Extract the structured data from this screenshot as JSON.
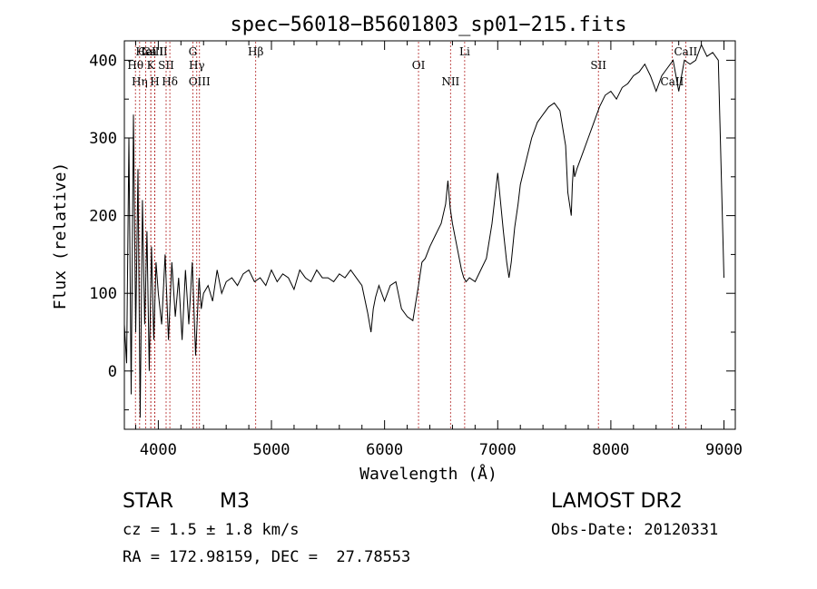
{
  "chart_data": {
    "type": "line",
    "title": "spec−56018−B5601803_sp01−215.fits",
    "xlabel": "Wavelength (Å)",
    "ylabel": "Flux (relative)",
    "xlim": [
      3700,
      9100
    ],
    "ylim": [
      -75,
      425
    ],
    "xticks": [
      4000,
      5000,
      6000,
      7000,
      8000,
      9000
    ],
    "yticks": [
      0,
      100,
      200,
      300,
      400
    ],
    "grid": false,
    "series": [
      {
        "x": [
          3700,
          3720,
          3740,
          3760,
          3780,
          3800,
          3820,
          3840,
          3860,
          3880,
          3900,
          3920,
          3940,
          3960,
          3980,
          4000,
          4030,
          4060,
          4090,
          4120,
          4150,
          4180,
          4210,
          4240,
          4270,
          4300,
          4330,
          4360,
          4380,
          4400,
          4440,
          4480,
          4520,
          4560,
          4600,
          4650,
          4700,
          4750,
          4800,
          4850,
          4900,
          4950,
          5000,
          5050,
          5100,
          5150,
          5200,
          5250,
          5300,
          5350,
          5400,
          5450,
          5500,
          5550,
          5600,
          5650,
          5700,
          5750,
          5800,
          5850,
          5880,
          5900,
          5920,
          5950,
          6000,
          6050,
          6100,
          6150,
          6200,
          6250,
          6300,
          6330,
          6360,
          6400,
          6450,
          6500,
          6540,
          6560,
          6580,
          6600,
          6640,
          6680,
          6700,
          6720,
          6750,
          6800,
          6850,
          6900,
          6950,
          7000,
          7050,
          7080,
          7100,
          7120,
          7150,
          7180,
          7200,
          7250,
          7300,
          7350,
          7400,
          7450,
          7500,
          7550,
          7600,
          7620,
          7650,
          7660,
          7670,
          7680,
          7700,
          7750,
          7800,
          7850,
          7900,
          7950,
          8000,
          8050,
          8100,
          8150,
          8200,
          8250,
          8300,
          8350,
          8400,
          8450,
          8500,
          8550,
          8600,
          8650,
          8700,
          8750,
          8800,
          8850,
          8900,
          8950,
          9000
        ],
        "y": [
          60,
          10,
          300,
          -30,
          330,
          50,
          260,
          -60,
          220,
          60,
          180,
          0,
          160,
          40,
          140,
          100,
          60,
          150,
          40,
          140,
          70,
          120,
          40,
          130,
          60,
          140,
          20,
          120,
          80,
          100,
          110,
          90,
          130,
          100,
          115,
          120,
          110,
          125,
          130,
          115,
          120,
          110,
          130,
          115,
          125,
          120,
          105,
          130,
          120,
          115,
          130,
          120,
          120,
          115,
          125,
          120,
          130,
          120,
          110,
          75,
          50,
          80,
          95,
          110,
          90,
          110,
          115,
          80,
          70,
          65,
          110,
          140,
          145,
          160,
          175,
          190,
          215,
          245,
          210,
          190,
          160,
          130,
          120,
          115,
          120,
          115,
          130,
          145,
          190,
          255,
          180,
          140,
          120,
          140,
          185,
          215,
          240,
          270,
          300,
          320,
          330,
          340,
          345,
          335,
          290,
          230,
          200,
          240,
          265,
          250,
          260,
          280,
          300,
          320,
          340,
          355,
          360,
          350,
          365,
          370,
          380,
          385,
          395,
          380,
          360,
          380,
          390,
          400,
          360,
          400,
          395,
          400,
          420,
          405,
          410,
          400,
          120
        ]
      }
    ],
    "line_markers": [
      {
        "label": "Ca II",
        "wavelength": 3934
      },
      {
        "label": "K",
        "wavelength": 3934
      },
      {
        "label": "H",
        "wavelength": 3969
      },
      {
        "label": "Ca II",
        "wavelength": 3969
      },
      {
        "label": "Hθ",
        "wavelength": 3798
      },
      {
        "label": "Hη",
        "wavelength": 3835
      },
      {
        "label": "HeI",
        "wavelength": 3889
      },
      {
        "label": "SII",
        "wavelength": 4069
      },
      {
        "label": "Hδ",
        "wavelength": 4102
      },
      {
        "label": "G",
        "wavelength": 4305
      },
      {
        "label": "Hγ",
        "wavelength": 4340
      },
      {
        "label": "OIII",
        "wavelength": 4364
      },
      {
        "label": "Hβ",
        "wavelength": 4861
      },
      {
        "label": "OI",
        "wavelength": 6300
      },
      {
        "label": "NII",
        "wavelength": 6583
      },
      {
        "label": "Li",
        "wavelength": 6708
      },
      {
        "label": "SII",
        "wavelength": 7890
      },
      {
        "label": "CaII",
        "wavelength": 8542
      },
      {
        "label": "CaII",
        "wavelength": 8662
      }
    ]
  },
  "footer": {
    "class_label": "STAR",
    "subclass_label": "M3",
    "redshift_text": "cz = 1.5 ± 1.8 km/s",
    "coords_text": "RA = 172.98159, DEC =  27.78553",
    "survey_label": "LAMOST DR2",
    "obsdate_text": "Obs-Date: 20120331"
  }
}
